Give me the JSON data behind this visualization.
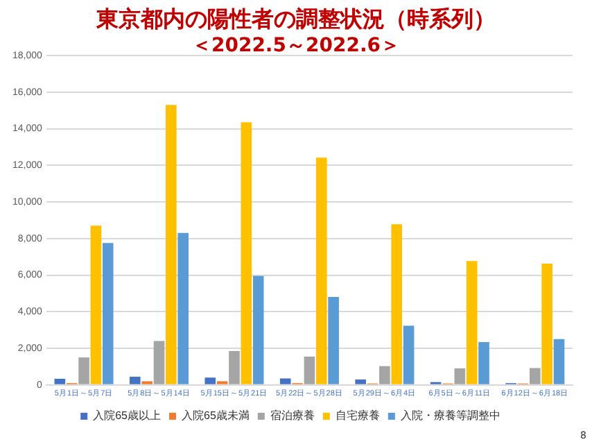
{
  "chart_data": {
    "type": "bar",
    "title": "東京都内の陽性者の調整状況（時系列）",
    "subtitle": "＜2022.5～2022.6＞",
    "categories": [
      "5月1日～5月7日",
      "5月8日～5月14日",
      "5月15日～5月21日",
      "5月22日～5月28日",
      "5月29日～6月4日",
      "6月5日～6月11日",
      "6月12日～6月18日"
    ],
    "series": [
      {
        "name": "入院65歳以上",
        "color": "#4472c4",
        "values": [
          330,
          450,
          400,
          350,
          300,
          150,
          100
        ]
      },
      {
        "name": "入院65歳未満",
        "color": "#ed7d31",
        "values": [
          100,
          200,
          200,
          100,
          80,
          80,
          80
        ]
      },
      {
        "name": "宿泊療養",
        "color": "#a5a5a5",
        "values": [
          1500,
          2400,
          1850,
          1550,
          1030,
          900,
          920
        ]
      },
      {
        "name": "自宅療養",
        "color": "#ffc000",
        "values": [
          8700,
          15300,
          14350,
          12420,
          8780,
          6770,
          6630
        ]
      },
      {
        "name": "入院・療養等調整中",
        "color": "#5b9bd5",
        "values": [
          7750,
          8300,
          5950,
          4810,
          3230,
          2340,
          2500
        ]
      }
    ],
    "ylim": [
      0,
      18000
    ],
    "yticks": [
      0,
      {
        "value": 2000,
        "label": "2,000"
      },
      {
        "value": 4000,
        "label": "4,000"
      },
      {
        "value": 6000,
        "label": "6,000"
      },
      {
        "value": 8000,
        "label": "8,000"
      },
      {
        "value": 10000,
        "label": "10,000"
      },
      {
        "value": 12000,
        "label": "12,000"
      },
      {
        "value": 14000,
        "label": "14,000"
      },
      {
        "value": 16000,
        "label": "16,000"
      },
      {
        "value": 18000,
        "label": "18,000"
      }
    ],
    "grid": "y",
    "legend": "bottom",
    "annotations": [
      "8"
    ]
  }
}
